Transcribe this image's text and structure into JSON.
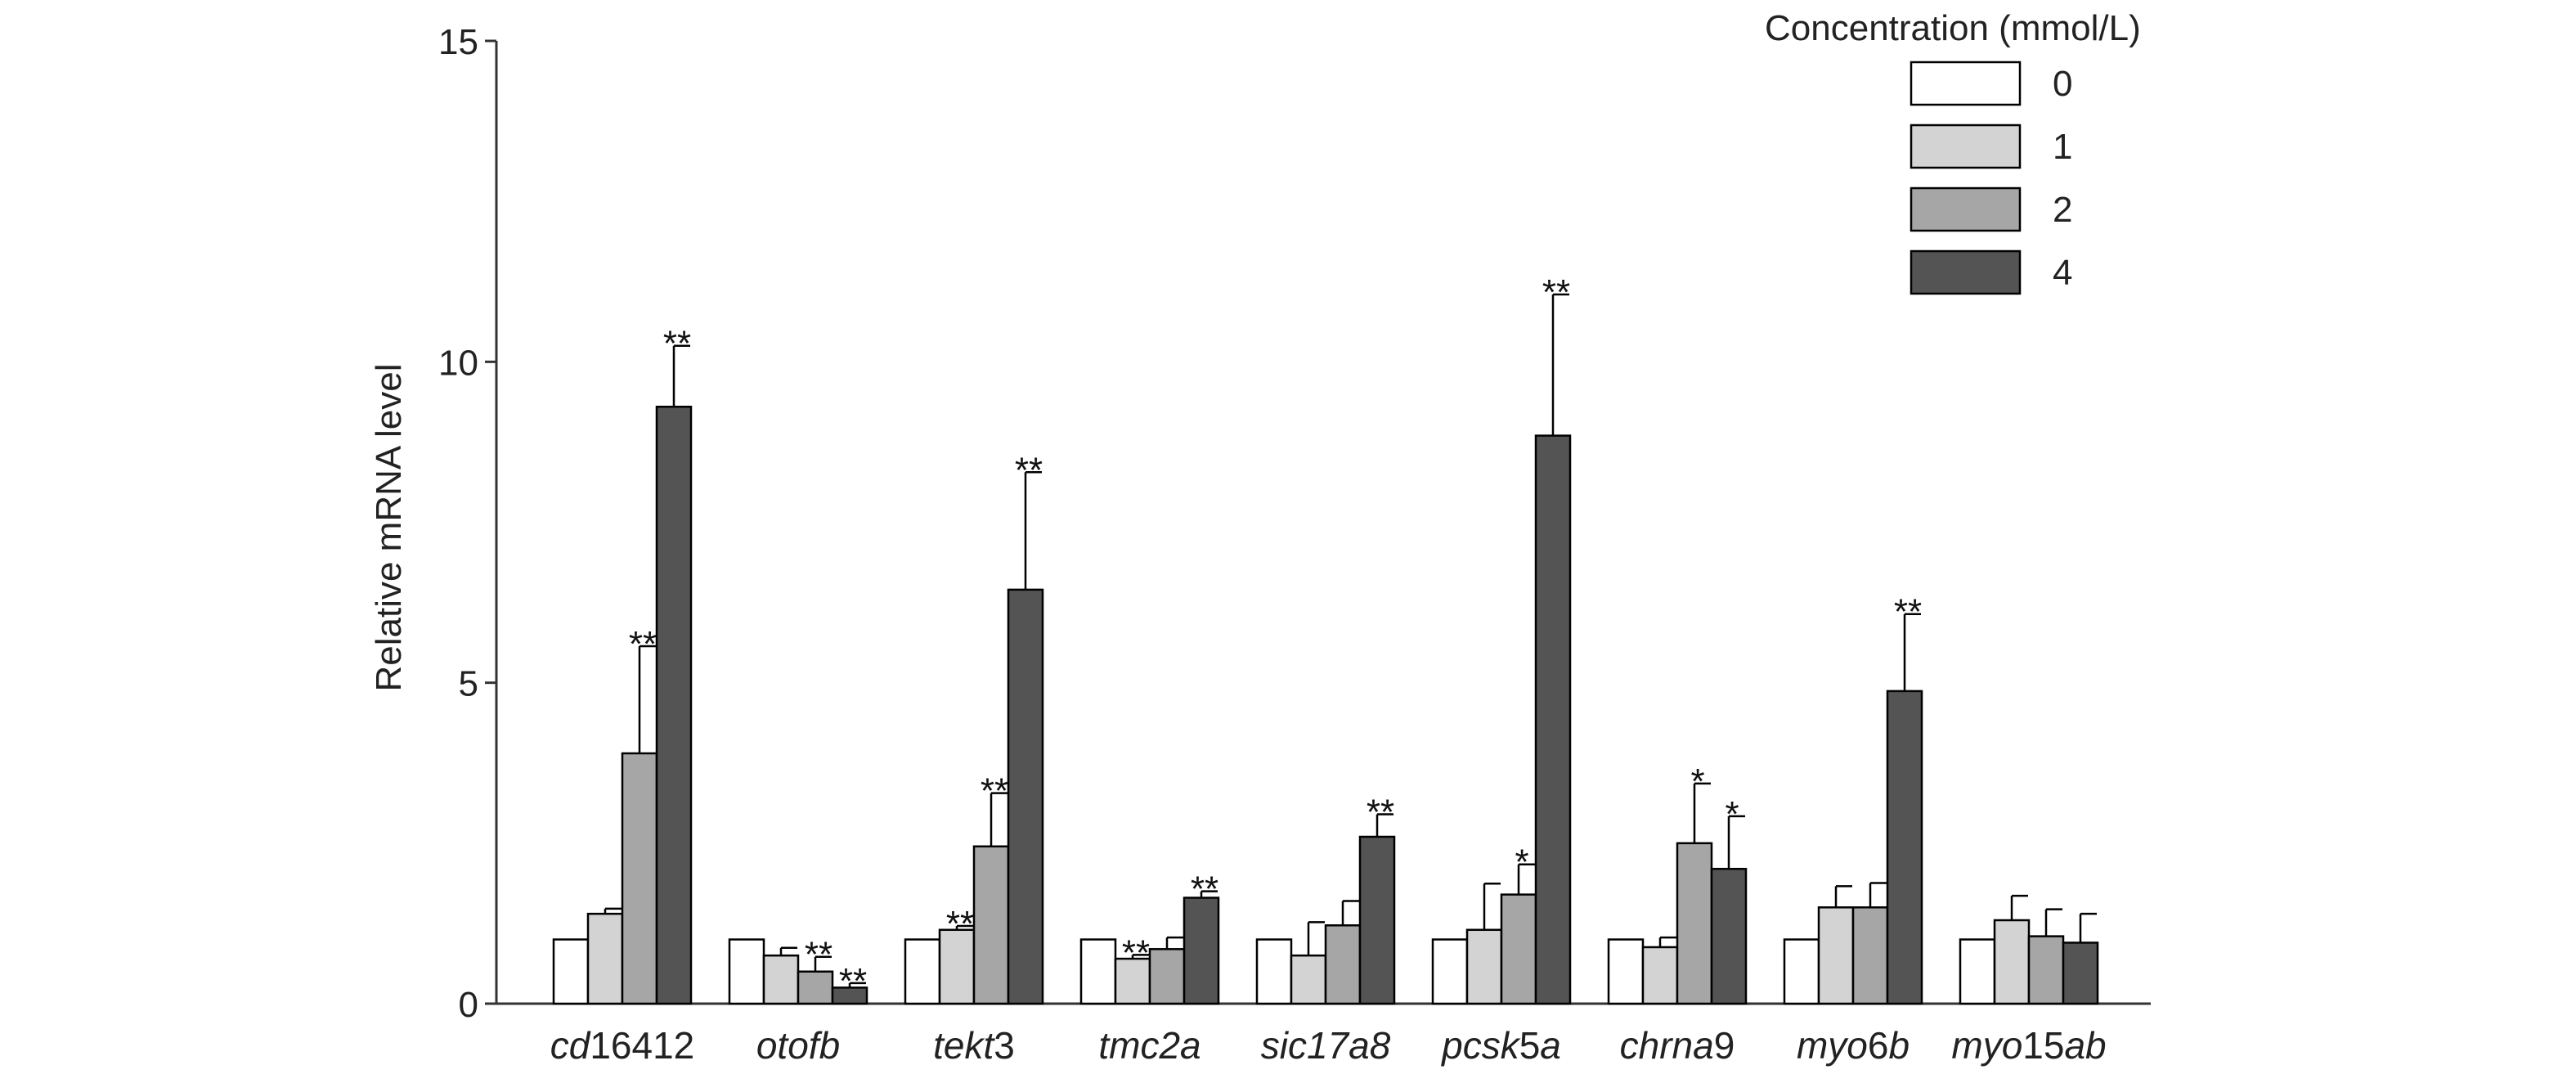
{
  "chart_data": {
    "type": "bar",
    "title": "",
    "xlabel": "",
    "ylabel": "Relative mRNA level",
    "ylim": [
      0,
      15
    ],
    "yticks": [
      0,
      5,
      10,
      15
    ],
    "grid": false,
    "legend_placement": "top-right",
    "legend_title": "Concentration (mmol/L)",
    "categories": [
      {
        "prefix": "cd",
        "num": "16412",
        "suffix": ""
      },
      {
        "prefix": "otofb",
        "num": "",
        "suffix": ""
      },
      {
        "prefix": "tekt",
        "num": "3",
        "suffix": ""
      },
      {
        "prefix": "tmc2a",
        "num": "",
        "suffix": ""
      },
      {
        "prefix": "sic17a8",
        "num": "",
        "suffix": ""
      },
      {
        "prefix": "pcsk",
        "num": "5",
        "suffix": "a"
      },
      {
        "prefix": "chrna",
        "num": "9",
        "suffix": ""
      },
      {
        "prefix": "myo",
        "num": "6",
        "suffix": "b"
      },
      {
        "prefix": "myo",
        "num": "15",
        "suffix": "ab"
      }
    ],
    "series": [
      {
        "name": "0",
        "color": "#ffffff",
        "values": [
          1.0,
          1.0,
          1.0,
          1.0,
          1.0,
          1.0,
          1.0,
          1.0,
          1.0
        ],
        "errors": [
          0,
          0,
          0,
          0,
          0,
          0,
          0,
          0,
          0
        ],
        "sig": [
          "",
          "",
          "",
          "",
          "",
          "",
          "",
          "",
          ""
        ]
      },
      {
        "name": "1",
        "color": "#d3d3d3",
        "values": [
          1.4,
          0.75,
          1.15,
          0.7,
          0.75,
          1.15,
          0.88,
          1.5,
          1.3
        ],
        "errors": [
          0.08,
          0.12,
          0.06,
          0.06,
          0.52,
          0.72,
          0.15,
          0.33,
          0.38
        ],
        "sig": [
          "",
          "",
          "**",
          "**",
          "",
          "",
          "",
          "",
          ""
        ]
      },
      {
        "name": "2",
        "color": "#a6a6a6",
        "values": [
          3.9,
          0.5,
          2.45,
          0.85,
          1.22,
          1.7,
          2.5,
          1.5,
          1.05
        ],
        "errors": [
          1.67,
          0.23,
          0.83,
          0.18,
          0.38,
          0.47,
          0.93,
          0.38,
          0.42
        ],
        "sig": [
          "**",
          "**",
          "**",
          "",
          "",
          "*",
          "*",
          "",
          ""
        ]
      },
      {
        "name": "4",
        "color": "#545454",
        "values": [
          9.3,
          0.25,
          6.45,
          1.65,
          2.6,
          8.85,
          2.1,
          4.87,
          0.95
        ],
        "errors": [
          0.95,
          0.07,
          1.83,
          0.1,
          0.35,
          2.2,
          0.82,
          1.2,
          0.45
        ],
        "sig": [
          "**",
          "**",
          "**",
          "**",
          "**",
          "**",
          "*",
          "**",
          ""
        ]
      }
    ]
  }
}
